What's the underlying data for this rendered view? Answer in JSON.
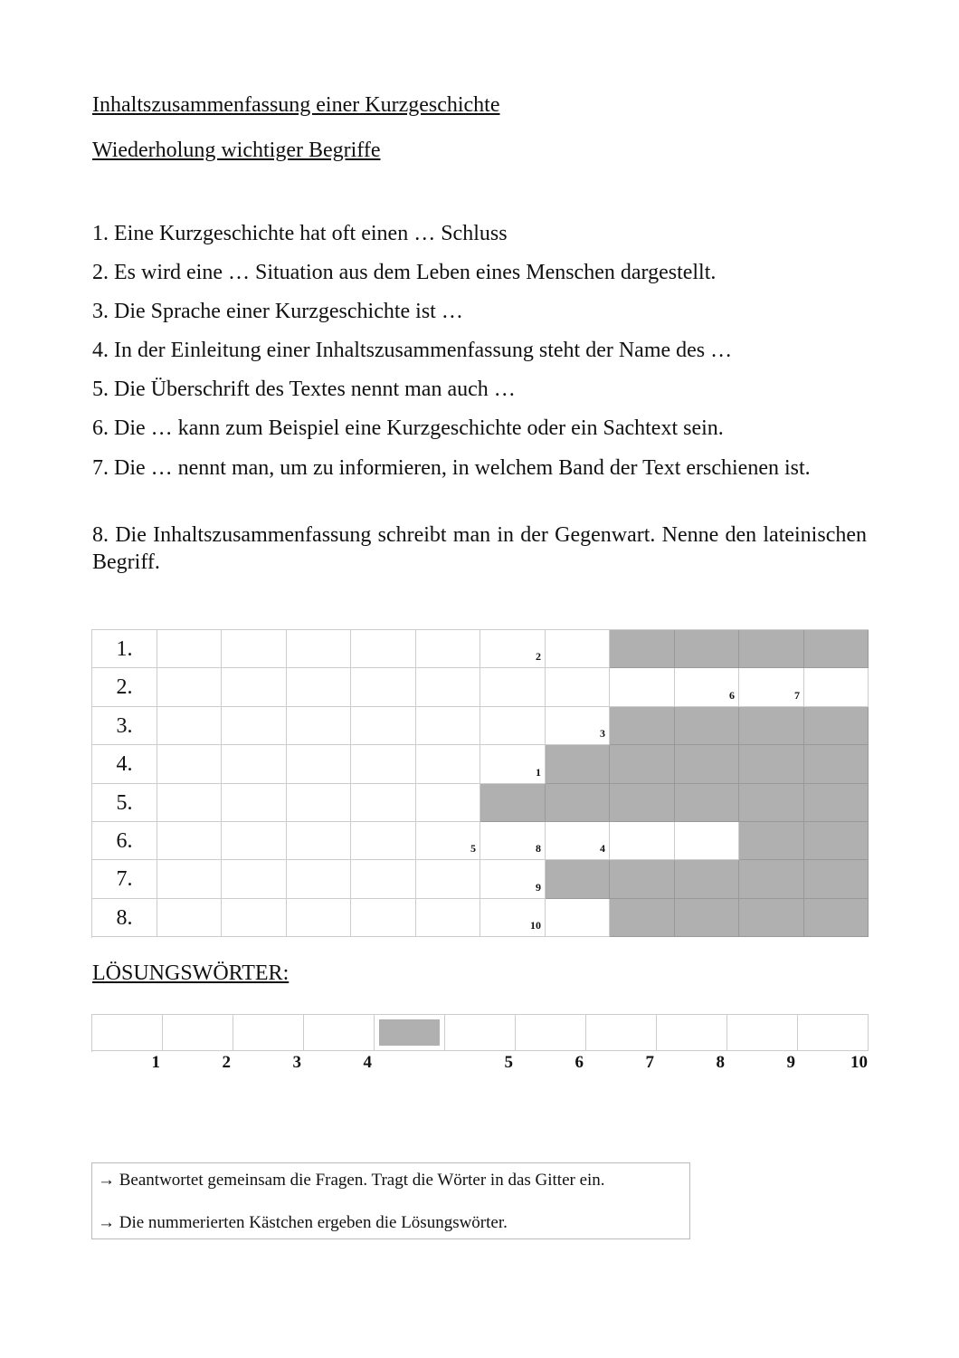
{
  "title": "Inhaltszusammenfassung einer Kurzgeschichte",
  "subtitle": "Wiederholung wichtiger Begriffe",
  "questions": [
    "1. Eine Kurzgeschichte hat oft einen … Schluss",
    "2. Es wird eine … Situation aus dem Leben eines Menschen dargestellt.",
    "3. Die Sprache einer Kurzgeschichte ist …",
    "4. In der Einleitung einer Inhaltszusammenfassung steht der Name des …",
    "5. Die Überschrift des Textes nennt man auch …",
    "6. Die … kann zum Beispiel eine Kurzgeschichte oder ein Sachtext sein.",
    "7. Die … nennt man, um zu informieren, in welchem Band der Text erschienen ist.",
    "8. Die Inhaltszusammenfassung schreibt man in der Gegenwart. Nenne den lateinischen Begriff."
  ],
  "grid": {
    "shade_color": "#b0b0b0",
    "rows": [
      {
        "label": "1.",
        "shaded": [
          9,
          10,
          11,
          12
        ],
        "numbers": {
          "7": "2"
        }
      },
      {
        "label": "2.",
        "shaded": [],
        "numbers": {
          "10": "6",
          "11": "7"
        }
      },
      {
        "label": "3.",
        "shaded": [
          9,
          10,
          11,
          12
        ],
        "numbers": {
          "8": "3"
        }
      },
      {
        "label": "4.",
        "shaded": [
          8,
          9,
          10,
          11,
          12
        ],
        "numbers": {
          "7": "1"
        }
      },
      {
        "label": "5.",
        "shaded": [
          7,
          8,
          9,
          10,
          11,
          12
        ],
        "numbers": {}
      },
      {
        "label": "6.",
        "shaded": [
          11,
          12
        ],
        "numbers": {
          "6": "5",
          "7": "8",
          "8": "4"
        }
      },
      {
        "label": "7.",
        "shaded": [
          8,
          9,
          10,
          11,
          12
        ],
        "numbers": {
          "7": "9"
        }
      },
      {
        "label": "8.",
        "shaded": [
          9,
          10,
          11,
          12
        ],
        "numbers": {
          "7": "10"
        }
      }
    ]
  },
  "solution_heading": "LÖSUNGSWÖRTER:",
  "solution": {
    "cells": 11,
    "shaded_cell": 5,
    "numbers": [
      "1",
      "2",
      "3",
      "4",
      "",
      "5",
      "6",
      "7",
      "8",
      "9",
      "10"
    ]
  },
  "instructions": [
    "→ Beantwortet gemeinsam die Fragen. Tragt die Wörter in das Gitter ein.",
    "→ Die nummerierten Kästchen ergeben die Lösungswörter."
  ]
}
